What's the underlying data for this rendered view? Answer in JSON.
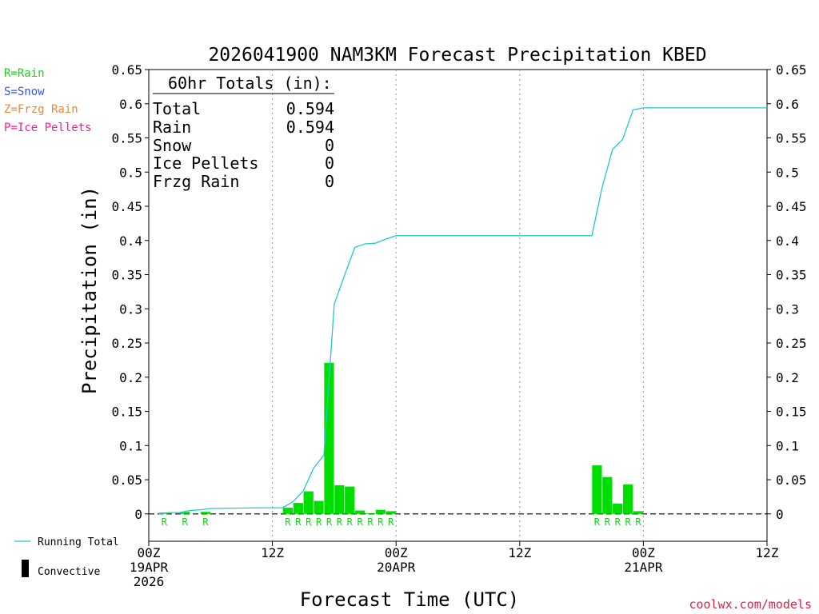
{
  "title": "2026041900 NAM3KM Forecast Precipitation KBED",
  "type_legend": [
    {
      "label": "R=Rain",
      "color": "#22cc22"
    },
    {
      "label": "S=Snow",
      "color": "#3355ee"
    },
    {
      "label": "Z=Frzg Rain",
      "color": "#ee8833"
    },
    {
      "label": "P=Ice Pellets",
      "color": "#ee2299"
    }
  ],
  "totals_box": {
    "heading": "60hr Totals (in):",
    "rows": [
      {
        "label": "Total",
        "value": "0.594"
      },
      {
        "label": "Rain",
        "value": "0.594"
      },
      {
        "label": "Snow",
        "value": "0"
      },
      {
        "label": "Ice Pellets",
        "value": "0"
      },
      {
        "label": "Frzg Rain",
        "value": "0"
      }
    ]
  },
  "bottom_legend": {
    "running_total": "Running Total",
    "convective": "Convective"
  },
  "credit": "coolwx.com/models",
  "colors": {
    "bar": "#00dd00",
    "running_total": "#22c8d0",
    "rain_marker": "#22cc22",
    "credit": "#dd2244"
  },
  "chart_data": {
    "type": "bar",
    "xlabel": "Forecast Time (UTC)",
    "ylabel": "Precipitation (in)",
    "ylim": [
      -0.04,
      0.65
    ],
    "yticks": [
      "0",
      "0.05",
      "0.1",
      "0.15",
      "0.2",
      "0.25",
      "0.3",
      "0.35",
      "0.4",
      "0.45",
      "0.5",
      "0.55",
      "0.6",
      "0.65"
    ],
    "xlim_hours": [
      0,
      60
    ],
    "xticks": [
      {
        "hour": 0,
        "lines": [
          "00Z",
          "19APR",
          "2026"
        ]
      },
      {
        "hour": 12,
        "lines": [
          "12Z"
        ]
      },
      {
        "hour": 24,
        "lines": [
          "00Z",
          "20APR"
        ]
      },
      {
        "hour": 36,
        "lines": [
          "12Z"
        ]
      },
      {
        "hour": 48,
        "lines": [
          "00Z",
          "21APR"
        ]
      },
      {
        "hour": 60,
        "lines": [
          "12Z"
        ]
      }
    ],
    "grid_dotted_hours": [
      12,
      24,
      36,
      48
    ],
    "hourly_precip": [
      {
        "hour": 2,
        "value": 0.002,
        "type": "R"
      },
      {
        "hour": 4,
        "value": 0.003,
        "type": "R"
      },
      {
        "hour": 6,
        "value": 0.003,
        "type": "R"
      },
      {
        "hour": 14,
        "value": 0.009,
        "type": "R"
      },
      {
        "hour": 15,
        "value": 0.016,
        "type": "R"
      },
      {
        "hour": 16,
        "value": 0.033,
        "type": "R"
      },
      {
        "hour": 17,
        "value": 0.019,
        "type": "R"
      },
      {
        "hour": 18,
        "value": 0.221,
        "type": "R"
      },
      {
        "hour": 19,
        "value": 0.042,
        "type": "R"
      },
      {
        "hour": 20,
        "value": 0.04,
        "type": "R"
      },
      {
        "hour": 21,
        "value": 0.005,
        "type": "R"
      },
      {
        "hour": 22,
        "value": 0.001,
        "type": "R"
      },
      {
        "hour": 23,
        "value": 0.006,
        "type": "R"
      },
      {
        "hour": 24,
        "value": 0.004,
        "type": "R"
      },
      {
        "hour": 44,
        "value": 0.071,
        "type": "R"
      },
      {
        "hour": 45,
        "value": 0.054,
        "type": "R"
      },
      {
        "hour": 46,
        "value": 0.015,
        "type": "R"
      },
      {
        "hour": 47,
        "value": 0.043,
        "type": "R"
      },
      {
        "hour": 48,
        "value": 0.004,
        "type": "R"
      }
    ],
    "running_total": [
      {
        "hour": 1,
        "value": 0
      },
      {
        "hour": 2,
        "value": 0.002
      },
      {
        "hour": 3,
        "value": 0.002
      },
      {
        "hour": 4,
        "value": 0.005
      },
      {
        "hour": 5,
        "value": 0.006
      },
      {
        "hour": 6,
        "value": 0.008
      },
      {
        "hour": 11,
        "value": 0.009
      },
      {
        "hour": 13,
        "value": 0.009
      },
      {
        "hour": 14,
        "value": 0.018
      },
      {
        "hour": 15,
        "value": 0.034
      },
      {
        "hour": 16,
        "value": 0.067
      },
      {
        "hour": 17,
        "value": 0.086
      },
      {
        "hour": 18,
        "value": 0.307
      },
      {
        "hour": 19,
        "value": 0.349
      },
      {
        "hour": 20,
        "value": 0.39
      },
      {
        "hour": 21,
        "value": 0.395
      },
      {
        "hour": 22,
        "value": 0.396
      },
      {
        "hour": 23,
        "value": 0.402
      },
      {
        "hour": 24,
        "value": 0.407
      },
      {
        "hour": 43,
        "value": 0.407
      },
      {
        "hour": 44,
        "value": 0.478
      },
      {
        "hour": 45,
        "value": 0.533
      },
      {
        "hour": 46,
        "value": 0.548
      },
      {
        "hour": 47,
        "value": 0.591
      },
      {
        "hour": 48,
        "value": 0.594
      },
      {
        "hour": 60,
        "value": 0.594
      }
    ]
  }
}
